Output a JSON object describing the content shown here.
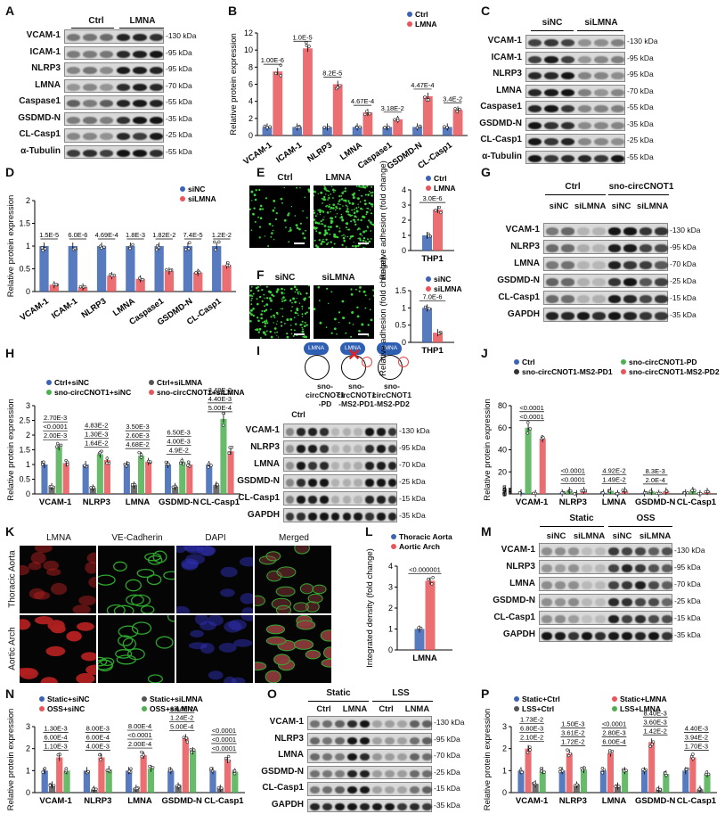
{
  "panels": {
    "A": {
      "letter": "A",
      "groups": [
        "Ctrl",
        "LMNA"
      ],
      "rows": [
        "VCAM-1",
        "ICAM-1",
        "NLRP3",
        "LMNA",
        "Caspase1",
        "GSDMD-N",
        "CL-Casp1",
        "α-Tubulin"
      ],
      "kda": [
        "130 kDa",
        "95 kDa",
        "95 kDa",
        "70 kDa",
        "55 kDa",
        "35 kDa",
        "25 kDa",
        "55 kDa"
      ]
    },
    "C": {
      "letter": "C",
      "groups": [
        "siNC",
        "siLMNA"
      ],
      "rows": [
        "VCAM-1",
        "ICAM-1",
        "NLRP3",
        "LMNA",
        "Caspase1",
        "GSDMD-N",
        "CL-Casp1",
        "α-Tubulin"
      ],
      "kda": [
        "130 kDa",
        "95 kDa",
        "95 kDa",
        "70 kDa",
        "55 kDa",
        "35 kDa",
        "25 kDa",
        "55 kDa"
      ]
    },
    "G": {
      "letter": "G",
      "groups": [
        "Ctrl",
        "sno-circCNOT1"
      ],
      "subgroups": [
        "siNC",
        "siLMNA",
        "siNC",
        "siLMNA"
      ],
      "rows": [
        "VCAM-1",
        "NLRP3",
        "LMNA",
        "GSDMD-N",
        "CL-Casp1",
        "GAPDH"
      ],
      "kda": [
        "130 kDa",
        "95 kDa",
        "70 kDa",
        "25 kDa",
        "15 kDa",
        "35 kDa"
      ]
    },
    "I": {
      "letter": "I",
      "lanes": [
        "Ctrl",
        "sno-circCNOT1-PD",
        "sno-circCNOT1-MS2-PD1",
        "sno-circCNOT1-MS2-PD2"
      ],
      "cartoon_label": "LMNA",
      "rows": [
        "VCAM-1",
        "NLRP3",
        "LMNA",
        "GSDMD-N",
        "CL-Casp1",
        "GAPDH"
      ],
      "kda": [
        "130 kDa",
        "95 kDa",
        "70 kDa",
        "25 kDa",
        "15 kDa",
        "35 kDa"
      ]
    },
    "K": {
      "letter": "K",
      "cols": [
        "LMNA",
        "VE-Cadherin",
        "DAPI",
        "Merged"
      ],
      "rows": [
        "Thoracic Aorta",
        "Aortic Arch"
      ]
    },
    "M": {
      "letter": "M",
      "groups": [
        "Static",
        "OSS"
      ],
      "subgroups": [
        "siNC",
        "siLMNA",
        "siNC",
        "siLMNA"
      ],
      "rows": [
        "VCAM-1",
        "NLRP3",
        "LMNA",
        "GSDMD-N",
        "CL-Casp1",
        "GAPDH"
      ],
      "kda": [
        "130 kDa",
        "95 kDa",
        "70 kDa",
        "25 kDa",
        "15 kDa",
        "35 kDa"
      ]
    },
    "O": {
      "letter": "O",
      "groups": [
        "Static",
        "LSS"
      ],
      "subgroups": [
        "Ctrl",
        "LMNA",
        "Ctrl",
        "LNMA"
      ],
      "rows": [
        "VCAM-1",
        "NLRP3",
        "LMNA",
        "GSDMD-N",
        "CL-Casp1",
        "GAPDH"
      ],
      "kda": [
        "130 kDa",
        "95 kDa",
        "70 kDa",
        "25 kDa",
        "15 kDa",
        "35 kDa"
      ]
    },
    "E": {
      "letter": "E",
      "labels": [
        "Ctrl",
        "LMNA"
      ]
    },
    "F": {
      "letter": "F",
      "labels": [
        "siNC",
        "siLMNA"
      ]
    }
  },
  "chart_data": [
    {
      "id": "B",
      "type": "bar",
      "letter": "B",
      "ylabel": "Relative protein expression",
      "categories": [
        "VCAM-1",
        "ICAM-1",
        "NLRP3",
        "LMNA",
        "Caspase1",
        "GSDMD-N",
        "CL-Casp1"
      ],
      "ylim": [
        0,
        12
      ],
      "yticks": [
        0,
        2,
        4,
        6,
        8,
        10,
        12
      ],
      "legend": "top-right",
      "series": [
        {
          "name": "Ctrl",
          "color": "#3b63b4",
          "values": [
            1,
            1,
            1,
            1,
            1,
            1,
            1
          ]
        },
        {
          "name": "LMNA",
          "color": "#e8555a",
          "values": [
            7.5,
            10.2,
            6.0,
            2.7,
            1.9,
            4.6,
            3.0
          ]
        }
      ],
      "pvalues": [
        "1.00E-6",
        "1.0E-5",
        "8.2E-5",
        "4.67E-4",
        "3.18E-2",
        "4.47E-4",
        "3.4E-2"
      ]
    },
    {
      "id": "D",
      "type": "bar",
      "letter": "D",
      "ylabel": "Relative protein expression",
      "categories": [
        "VCAM-1",
        "ICAM-1",
        "NLRP3",
        "LMNA",
        "Caspase1",
        "GSDMD-N",
        "CL-Casp1"
      ],
      "ylim": [
        0,
        2.0
      ],
      "yticks": [
        0,
        0.5,
        1.0,
        1.5,
        2.0
      ],
      "legend": "top-right",
      "series": [
        {
          "name": "siNC",
          "color": "#3b63b4",
          "values": [
            1,
            1,
            1,
            1,
            1,
            1,
            1
          ]
        },
        {
          "name": "siLMNA",
          "color": "#e8555a",
          "values": [
            0.15,
            0.1,
            0.35,
            0.28,
            0.45,
            0.42,
            0.58
          ]
        }
      ],
      "pvalues": [
        "1.5E-5",
        "6.0E-6",
        "4.69E-4",
        "1.8E-3",
        "1.82E-2",
        "7.4E-5",
        "1.2E-2"
      ]
    },
    {
      "id": "E2",
      "type": "bar",
      "ylabel": "Relative adhesion (fold change)",
      "categories": [
        "THP1"
      ],
      "ylim": [
        0,
        4
      ],
      "yticks": [
        0,
        1,
        2,
        3,
        4
      ],
      "legend": "top-right",
      "series": [
        {
          "name": "Ctrl",
          "color": "#3b63b4",
          "values": [
            1
          ]
        },
        {
          "name": "LMNA",
          "color": "#e8555a",
          "values": [
            2.7
          ]
        }
      ],
      "pvalues": [
        "3.0E-6"
      ]
    },
    {
      "id": "F2",
      "type": "bar",
      "ylabel": "Relative adhesion (fold change)",
      "categories": [
        "THP1"
      ],
      "ylim": [
        0,
        1.5
      ],
      "yticks": [
        0,
        0.5,
        1.0,
        1.5
      ],
      "legend": "top-right",
      "series": [
        {
          "name": "siNC",
          "color": "#3b63b4",
          "values": [
            1
          ]
        },
        {
          "name": "siLMNA",
          "color": "#e8555a",
          "values": [
            0.28
          ]
        }
      ],
      "pvalues": [
        "7.0E-6"
      ]
    },
    {
      "id": "H",
      "type": "bar",
      "letter": "H",
      "ylabel": "Relative protein expression",
      "categories": [
        "VCAM-1",
        "NLRP3",
        "LMNA",
        "GSDMD-N",
        "CL-Casp1"
      ],
      "ylim": [
        0,
        3
      ],
      "yticks": [
        0,
        0.5,
        1.0,
        1.5,
        2.0,
        2.5,
        3.0
      ],
      "legend": "top",
      "series": [
        {
          "name": "Ctrl+siNC",
          "color": "#3b63b4",
          "values": [
            1,
            1,
            1,
            1,
            1
          ]
        },
        {
          "name": "Ctrl+siLMNA",
          "color": "#555555",
          "values": [
            0.25,
            0.2,
            0.3,
            0.25,
            0.3
          ]
        },
        {
          "name": "sno-circCNOT1+siNC",
          "color": "#4caf50",
          "values": [
            1.6,
            1.35,
            1.3,
            1.1,
            2.55
          ]
        },
        {
          "name": "sno-circCNOT1+siLMNA",
          "color": "#e8555a",
          "values": [
            1.05,
            1.15,
            1.1,
            1.0,
            1.45
          ]
        }
      ],
      "pvalues": [
        "2.00E-3",
        "<0.0001",
        "2.70E-3",
        "1.64E-2",
        "1.30E-3",
        "4.83E-2",
        "4.68E-2",
        "2.60E-3",
        "3.50E-3",
        "4.9E-2",
        "4.00E-3",
        "6.50E-3",
        "5.00E-4",
        "4.40E-3",
        "3.48E-2"
      ]
    },
    {
      "id": "J",
      "type": "bar",
      "letter": "J",
      "ylabel": "Relative protein expression",
      "categories": [
        "VCAM-1",
        "NLRP3",
        "LMNA",
        "GSDMD-N",
        "CL-Casp1"
      ],
      "yticks": [
        "0",
        "1",
        "2",
        "3",
        "4",
        "5",
        "20",
        "40",
        "60",
        "80"
      ],
      "legend": "top",
      "series": [
        {
          "name": "Ctrl",
          "color": "#3b63b4",
          "values": [
            1,
            1,
            1,
            1,
            1
          ]
        },
        {
          "name": "sno-circCNOT1-PD",
          "color": "#4caf50",
          "values": [
            60,
            3,
            2.8,
            2.2,
            3.2
          ]
        },
        {
          "name": "sno-circCNOT1-MS2-PD1",
          "color": "#333333",
          "values": [
            0.5,
            0.2,
            0.3,
            0.5,
            0.3
          ]
        },
        {
          "name": "sno-circCNOT1-MS2-PD2",
          "color": "#e8555a",
          "values": [
            50,
            3,
            3,
            2.5,
            2.2
          ]
        }
      ],
      "pvalues": [
        "<0.0001",
        "<0.0001",
        "<0.0001",
        "<0.0001",
        "1.49E-2",
        "4.92E-2",
        "2.0E-4",
        "8.3E-3"
      ]
    },
    {
      "id": "L",
      "type": "bar",
      "letter": "L",
      "ylabel": "Integrated density (fold change)",
      "categories": [
        "LMNA"
      ],
      "ylim": [
        0,
        4
      ],
      "yticks": [
        0,
        1,
        2,
        3,
        4
      ],
      "legend": "top",
      "series": [
        {
          "name": "Thoracic Aorta",
          "color": "#3b63b4",
          "values": [
            1
          ]
        },
        {
          "name": "Aortic Arch",
          "color": "#e8555a",
          "values": [
            3.3
          ]
        }
      ],
      "pvalues": [
        "<0.000001"
      ]
    },
    {
      "id": "N",
      "type": "bar",
      "letter": "N",
      "ylabel": "Relative protein expression",
      "categories": [
        "VCAM-1",
        "NLRP3",
        "LMNA",
        "GSDMD-N",
        "CL-Casp1"
      ],
      "ylim": [
        0,
        3
      ],
      "yticks": [
        0,
        1,
        2,
        3
      ],
      "legend": "top",
      "series": [
        {
          "name": "Static+siNC",
          "color": "#3b63b4",
          "values": [
            1,
            1,
            1,
            1,
            1
          ]
        },
        {
          "name": "Static+siLMNA",
          "color": "#555555",
          "values": [
            0.35,
            0.15,
            0.2,
            0.3,
            0.2
          ]
        },
        {
          "name": "OSS+siNC",
          "color": "#e8555a",
          "values": [
            1.6,
            1.6,
            1.7,
            2.5,
            1.5
          ]
        },
        {
          "name": "OSS+siLMNA",
          "color": "#4caf50",
          "values": [
            1.0,
            1.05,
            1.1,
            1.9,
            0.95
          ]
        }
      ],
      "pvalues": [
        "1.10E-3",
        "6.00E-4",
        "1.30E-3",
        "4.00E-3",
        "6.00E-4",
        "8.00E-3",
        "2.00E-4",
        "<0.0001",
        "8.00E-4",
        "5.00E-4",
        "1.24E-2",
        "3.64E-2",
        "<0.0001",
        "<0.0001",
        "<0.0001"
      ]
    },
    {
      "id": "P",
      "type": "bar",
      "letter": "P",
      "ylabel": "Relative protein expression",
      "categories": [
        "VCAM-1",
        "NLRP3",
        "LMNA",
        "GSDMD-N",
        "CL-Casp1"
      ],
      "ylim": [
        0,
        3
      ],
      "yticks": [
        0,
        1,
        2,
        3
      ],
      "legend": "top",
      "series": [
        {
          "name": "Static+Ctrl",
          "color": "#3b63b4",
          "values": [
            1,
            1,
            1,
            1,
            1
          ]
        },
        {
          "name": "Static+LMNA",
          "color": "#e8555a",
          "values": [
            2.0,
            1.8,
            1.8,
            2.3,
            1.6
          ]
        },
        {
          "name": "LSS+Ctrl",
          "color": "#555555",
          "values": [
            0.4,
            0.35,
            0.3,
            0.15,
            0.15
          ]
        },
        {
          "name": "LSS+LMNA",
          "color": "#4caf50",
          "values": [
            1.0,
            1.05,
            1.0,
            0.85,
            0.85
          ]
        }
      ],
      "pvalues": [
        "2.10E-2",
        "6.80E-3",
        "1.73E-2",
        "1.72E-2",
        "3.61E-2",
        "1.50E-3",
        "6.00E-4",
        "2.80E-3",
        "<0.0001",
        "1.42E-2",
        "3.60E-3",
        "8.40E-3",
        "1.70E-3",
        "3.94E-2",
        "4.40E-3"
      ]
    }
  ]
}
